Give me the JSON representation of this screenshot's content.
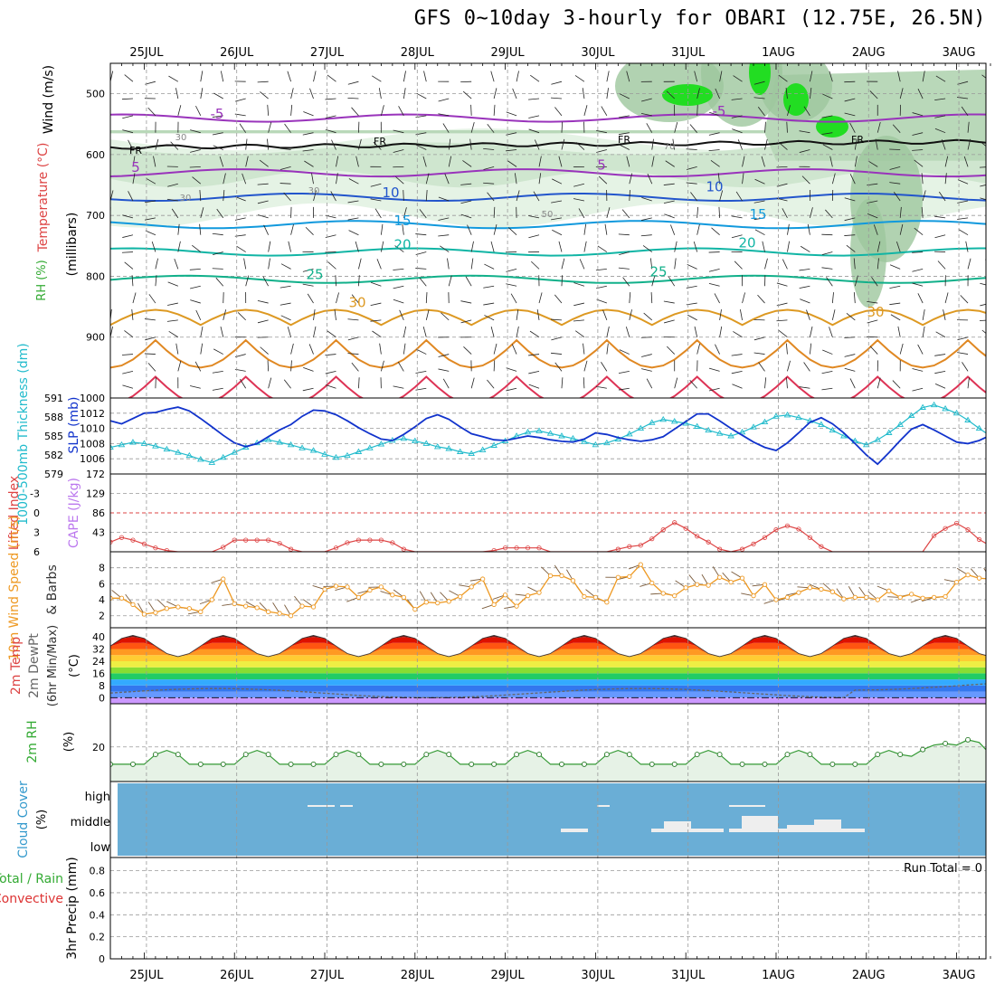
{
  "title": "GFS 0~10day 3-hourly for OBARI (12.75E, 26.5N)",
  "chart_data": {
    "type": "meteogram",
    "time_axis": {
      "labels": [
        "25JUL",
        "26JUL",
        "27JUL",
        "28JUL",
        "29JUL",
        "30JUL",
        "31JUL",
        "1AUG",
        "2AUG",
        "3AUG"
      ],
      "start_day": 24.6,
      "end_day": 34.3,
      "steps_per_day": 8
    },
    "panels": {
      "upper_air": {
        "ylabels": [
          "Wind (m/s)",
          "Temperature (°C)",
          "RH (%)",
          "(millibars)"
        ],
        "yticks": [
          500,
          600,
          700,
          800,
          900,
          1000
        ],
        "ylim": [
          450,
          1000
        ],
        "freezing_label": "FR",
        "isotherms": [
          {
            "t": -5,
            "level": 540,
            "labels": [
              "-5",
              "-5"
            ]
          },
          {
            "t": 5,
            "level": 630,
            "labels": [
              "5",
              "5"
            ]
          },
          {
            "t": 10,
            "level": 670,
            "labels": [
              "10",
              "10"
            ]
          },
          {
            "t": 15,
            "level": 715,
            "labels": [
              "15",
              "15"
            ]
          },
          {
            "t": 20,
            "level": 760,
            "labels": [
              "20",
              "20"
            ]
          },
          {
            "t": 25,
            "level": 805,
            "labels": [
              "25",
              "25"
            ]
          },
          {
            "t": 30,
            "level": 860,
            "labels": [
              "30",
              "30"
            ]
          }
        ],
        "rh_contour_labels": [
          "30",
          "30",
          "30",
          "50",
          "70"
        ]
      },
      "thickness_slp": {
        "ylabels": [
          "1000-500mb Thickness (dm)",
          "SLP (mb)"
        ],
        "thickness_ticks": [
          579,
          582,
          585,
          588,
          591
        ],
        "slp_ticks": [
          1006,
          1008,
          1010,
          1012
        ],
        "thickness": [
          583.2,
          583.6,
          584.0,
          583.8,
          583.4,
          582.9,
          582.4,
          581.9,
          581.3,
          580.8,
          581.6,
          582.4,
          583.2,
          583.9,
          584.4,
          584.0,
          583.6,
          583.1,
          582.7,
          582.1,
          581.6,
          581.9,
          582.5,
          583.1,
          583.7,
          584.3,
          584.6,
          584.2,
          583.8,
          583.3,
          583.0,
          582.5,
          582.2,
          582.8,
          583.5,
          584.2,
          585.0,
          585.6,
          585.8,
          585.4,
          585.0,
          584.6,
          584.1,
          583.6,
          583.9,
          584.5,
          585.3,
          586.2,
          587.1,
          587.6,
          587.3,
          587.0,
          586.5,
          585.9,
          585.4,
          585.0,
          585.6,
          586.4,
          587.2,
          588.1,
          588.3,
          587.9,
          587.4,
          586.8,
          585.9,
          585.0,
          584.2,
          583.6,
          584.4,
          585.5,
          586.8,
          588.2,
          589.5,
          589.9,
          589.3,
          588.6,
          587.5,
          586.2,
          585.0,
          584.0,
          583.4,
          584.0,
          585.0,
          586.3,
          587.6,
          588.0,
          587.4,
          586.4,
          585.3,
          584.2,
          583.3,
          582.6,
          582.2,
          582.0,
          582.4,
          583.0,
          583.6,
          583.2,
          582.8,
          582.6,
          582.5
        ],
        "slp": [
          1011.0,
          1010.6,
          1011.3,
          1012.0,
          1012.1,
          1012.5,
          1012.8,
          1012.3,
          1011.3,
          1010.2,
          1009.1,
          1008.1,
          1007.6,
          1008.0,
          1008.9,
          1009.8,
          1010.5,
          1011.6,
          1012.4,
          1012.3,
          1011.8,
          1011.0,
          1010.1,
          1009.3,
          1008.6,
          1008.4,
          1009.2,
          1010.2,
          1011.3,
          1011.8,
          1011.2,
          1010.2,
          1009.3,
          1008.9,
          1008.5,
          1008.4,
          1008.7,
          1009.0,
          1008.8,
          1008.5,
          1008.3,
          1008.2,
          1008.6,
          1009.4,
          1009.2,
          1008.8,
          1008.5,
          1008.3,
          1008.5,
          1008.9,
          1009.9,
          1010.9,
          1011.9,
          1011.9,
          1011.0,
          1010.0,
          1009.1,
          1008.2,
          1007.5,
          1007.1,
          1008.1,
          1009.4,
          1010.8,
          1011.4,
          1010.6,
          1009.4,
          1008.0,
          1006.5,
          1005.3,
          1006.8,
          1008.4,
          1009.9,
          1010.5,
          1009.8,
          1009.0,
          1008.2,
          1008.0,
          1008.4,
          1009.1,
          1009.8,
          1009.5,
          1008.1,
          1006.5,
          1005.1,
          1005.8,
          1007.3,
          1008.9,
          1010.3,
          1011.3,
          1011.5,
          1010.8,
          1009.9,
          1009.1,
          1008.6,
          1008.8,
          1009.6,
          1010.5,
          1011.0,
          1011.2,
          1011.3,
          1011.5
        ]
      },
      "li_cape": {
        "ylabels": [
          "Lifted Index",
          "CAPE (J/kg)"
        ],
        "li_ticks": [
          -3,
          0,
          3,
          6
        ],
        "cape_ticks": [
          43,
          86,
          129,
          172
        ],
        "lifted_index": [
          4.5,
          3.8,
          4.2,
          4.8,
          5.4,
          5.8,
          6.0,
          6.0,
          6.0,
          6.0,
          5.3,
          4.2,
          4.2,
          4.2,
          4.2,
          4.7,
          5.6,
          6.0,
          6.0,
          6.0,
          5.4,
          4.6,
          4.2,
          4.2,
          4.2,
          4.6,
          5.6,
          6.0,
          6.0,
          6.0,
          6.0,
          6.0,
          6.0,
          6.0,
          5.8,
          5.4,
          5.4,
          5.4,
          5.4,
          6.0,
          6.0,
          6.0,
          6.0,
          6.0,
          6.0,
          5.6,
          5.2,
          5.0,
          4.0,
          2.6,
          1.5,
          2.4,
          3.6,
          4.5,
          5.6,
          6.0,
          5.6,
          4.8,
          3.8,
          2.6,
          2.0,
          2.5,
          3.8,
          5.2,
          6.0,
          6.0,
          6.0,
          6.0,
          6.0,
          6.0,
          6.0,
          6.0,
          6.0,
          3.5,
          2.4,
          1.6,
          2.6,
          4.1,
          5.1,
          4.7,
          4.6,
          5.3,
          5.7,
          6.0,
          6.0,
          4.8,
          4.2,
          3.6,
          4.4,
          5.6,
          6.0,
          6.0,
          4.4,
          3.5,
          4.8,
          5.8,
          6.0,
          6.0,
          6.0,
          6.0,
          6.0
        ],
        "cape": [
          0,
          0,
          0,
          0,
          0,
          0,
          0,
          0,
          0,
          0,
          0,
          0,
          0,
          0,
          0,
          0,
          0,
          0,
          0,
          0,
          0,
          0,
          0,
          0,
          0,
          0,
          0,
          0,
          0,
          0,
          0,
          0,
          0,
          0,
          0,
          0,
          0,
          0,
          0,
          0,
          0,
          0,
          0,
          0,
          0,
          0,
          0,
          0,
          0,
          0,
          0,
          0,
          0,
          0,
          0,
          0,
          0,
          0,
          0,
          0,
          0,
          0,
          0,
          0,
          0,
          0,
          0,
          0,
          0,
          0,
          0,
          0,
          0,
          0,
          0,
          0,
          0,
          0,
          0,
          0,
          0,
          0,
          0,
          0,
          0,
          0,
          0,
          0,
          0,
          0,
          0,
          0,
          0,
          0,
          0,
          0,
          0,
          0,
          0,
          0,
          0
        ]
      },
      "wind10m": {
        "ylabels": [
          "10m Wind Speed (m/s)",
          "& Barbs"
        ],
        "yticks": [
          2,
          4,
          6,
          8
        ],
        "speed": [
          4.2,
          4.2,
          3.4,
          2.2,
          2.4,
          2.9,
          3.1,
          2.9,
          2.5,
          4.0,
          6.6,
          3.5,
          3.2,
          3.0,
          2.5,
          2.3,
          2.0,
          3.2,
          3.1,
          5.3,
          5.7,
          5.6,
          4.3,
          5.2,
          5.6,
          4.6,
          4.3,
          2.8,
          3.7,
          3.6,
          3.8,
          4.4,
          5.6,
          6.6,
          3.4,
          4.6,
          3.2,
          4.5,
          4.9,
          7.0,
          7.0,
          6.4,
          4.4,
          4.3,
          3.7,
          6.8,
          6.9,
          8.4,
          6.1,
          4.8,
          4.5,
          5.5,
          5.9,
          5.8,
          6.8,
          6.2,
          6.7,
          4.5,
          5.9,
          4.0,
          4.3,
          4.9,
          5.5,
          5.3,
          5.0,
          4.1,
          4.3,
          4.3,
          4.0,
          5.1,
          4.3,
          4.7,
          4.2,
          4.3,
          4.4,
          6.2,
          7.1,
          6.7,
          6.6,
          5.9,
          4.3,
          4.6,
          5.3,
          6.7,
          5.7,
          4.0,
          3.9,
          3.9,
          5.1,
          5.3,
          6.7,
          6.7,
          6.2,
          6.5,
          6.6,
          6.6,
          5.8,
          5.5,
          4.1,
          2.0,
          4.0
        ]
      },
      "temp2m": {
        "ylabels": [
          "2m Temp",
          "2m DewPt",
          "(6hr Min/Max)"
        ],
        "units": "(°C)",
        "yticks": [
          0,
          8,
          16,
          24,
          32,
          40
        ]
      },
      "rh2m": {
        "ylabels": [
          "2m RH"
        ],
        "units": "(%)",
        "yticks": [
          20
        ]
      },
      "cloud": {
        "ylabels": [
          "Cloud Cover",
          "(%)"
        ],
        "levels": [
          "high",
          "middle",
          "low"
        ]
      },
      "precip": {
        "ylabels": [
          "3hr Precip (mm)",
          "Total / Rain",
          "Convective"
        ],
        "yticks": [
          0,
          0.2,
          0.4,
          0.6,
          0.8
        ],
        "run_total_label": "Run Total = 0"
      }
    }
  }
}
